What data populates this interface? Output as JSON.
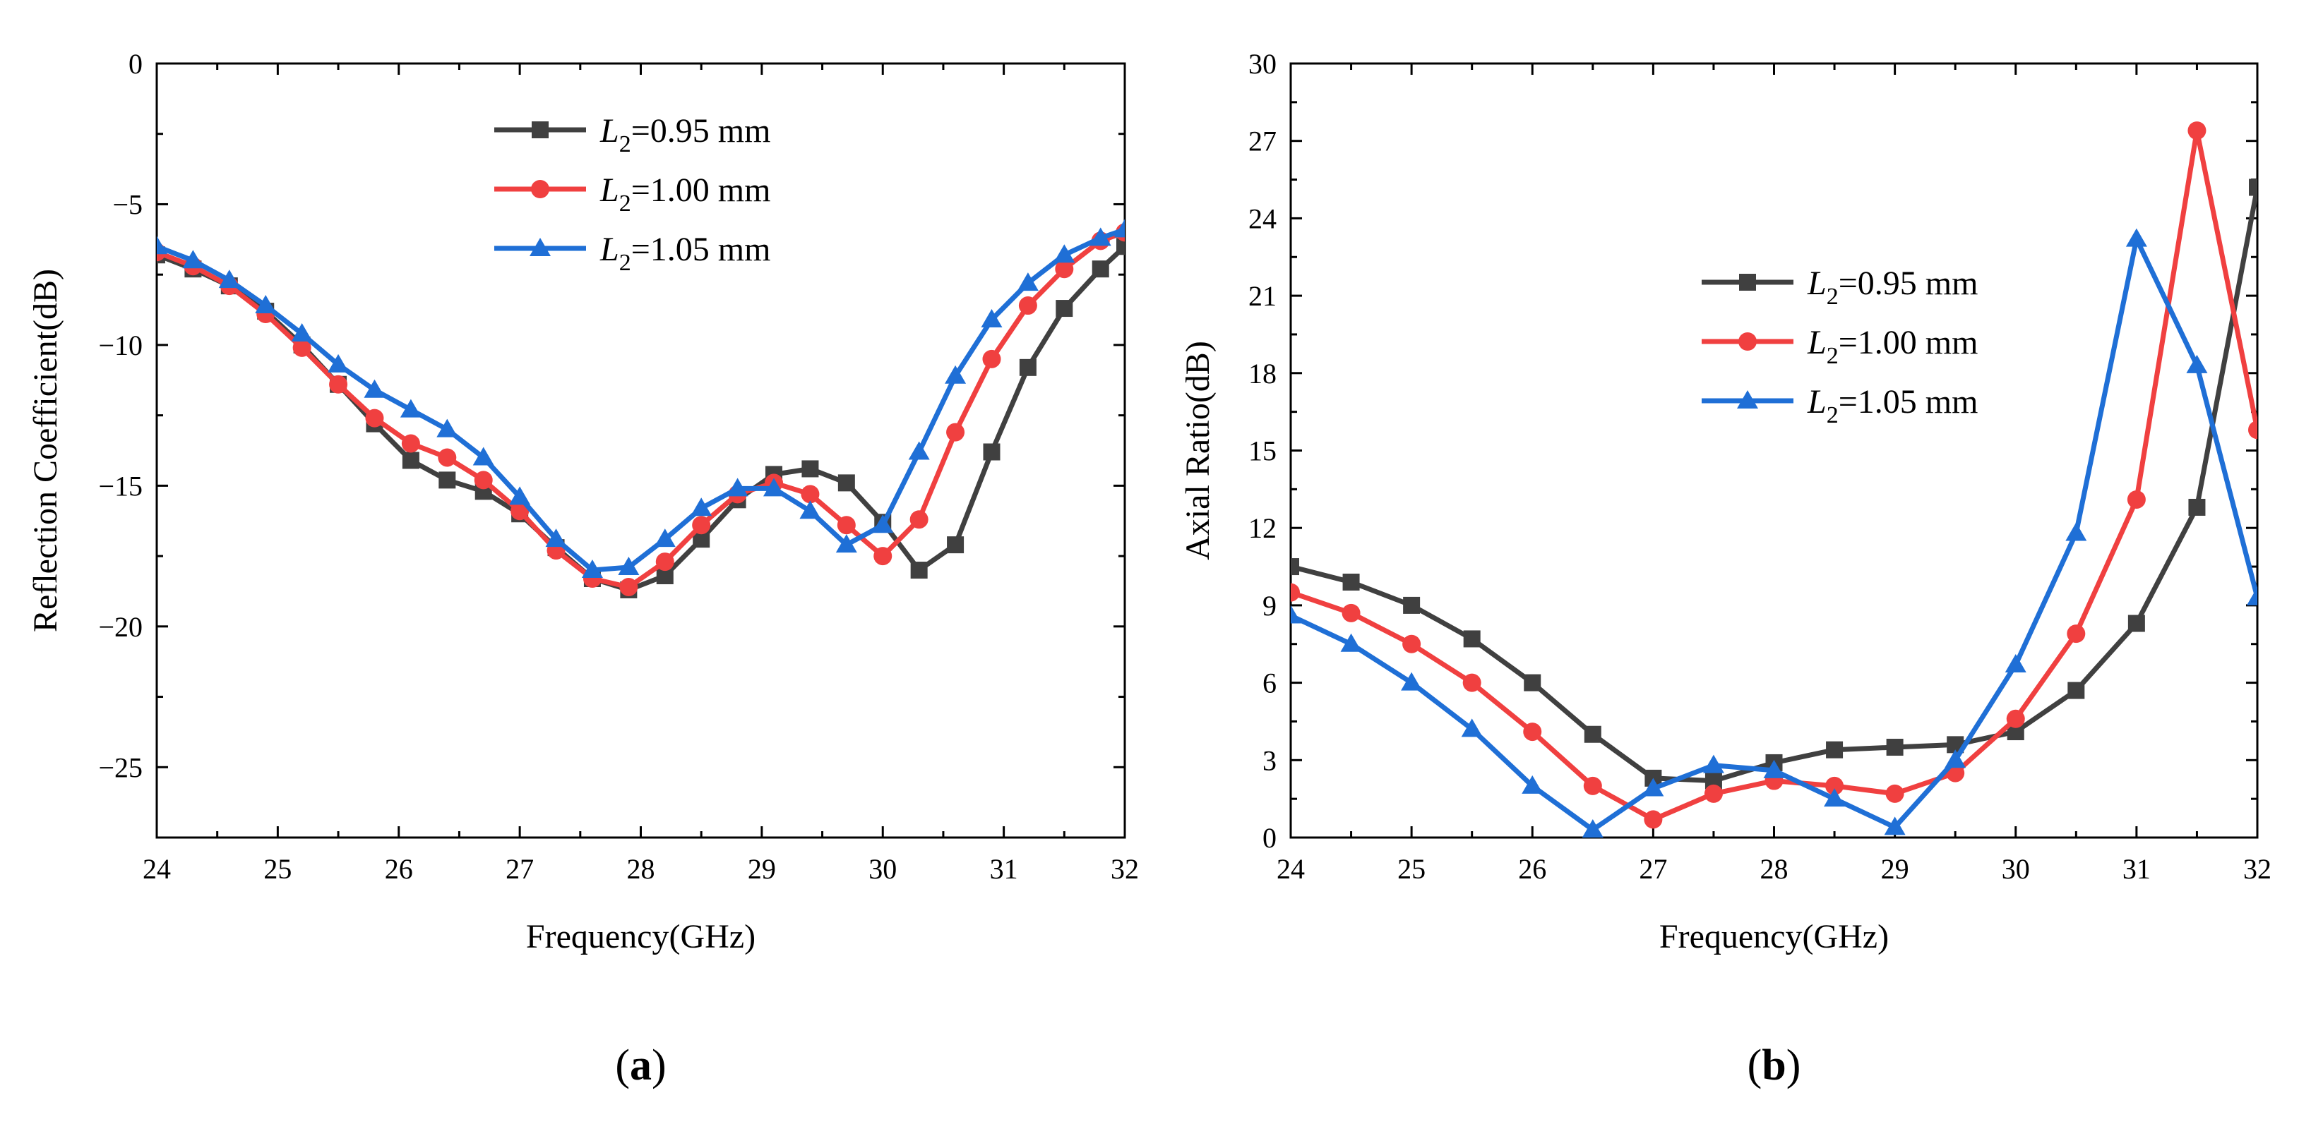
{
  "chart_data": [
    {
      "panel_label": "a",
      "type": "line",
      "xlabel": "Frequency(GHz)",
      "ylabel": "Reflection Coefficient(dB)",
      "xlim": [
        24,
        32
      ],
      "ylim": [
        -27.5,
        0
      ],
      "xticks": [
        24,
        25,
        26,
        27,
        28,
        29,
        30,
        31,
        32
      ],
      "yticks": [
        0,
        -5,
        -10,
        -15,
        -20,
        -25
      ],
      "ytick_labels": [
        "0",
        "−5",
        "−10",
        "−15",
        "−20",
        "−25"
      ],
      "grid": false,
      "legend_position": "top-center",
      "series": [
        {
          "name": "L2=0.95 mm",
          "name_base": "L",
          "name_sub": "2",
          "name_rest": "=0.95 mm",
          "color": "#404040",
          "marker": "square",
          "x": [
            24.0,
            24.3,
            24.6,
            24.9,
            25.2,
            25.5,
            25.8,
            26.1,
            26.4,
            26.7,
            27.0,
            27.3,
            27.6,
            27.9,
            28.2,
            28.5,
            28.8,
            29.1,
            29.4,
            29.7,
            30.0,
            30.3,
            30.6,
            30.9,
            31.2,
            31.5,
            31.8,
            32.0
          ],
          "y": [
            -6.8,
            -7.3,
            -7.9,
            -8.8,
            -10.0,
            -11.4,
            -12.8,
            -14.1,
            -14.8,
            -15.2,
            -16.0,
            -17.2,
            -18.3,
            -18.7,
            -18.2,
            -16.9,
            -15.5,
            -14.6,
            -14.4,
            -14.9,
            -16.3,
            -18.0,
            -17.1,
            -13.8,
            -10.8,
            -8.7,
            -7.3,
            -6.5
          ]
        },
        {
          "name": "L2=1.00 mm",
          "name_base": "L",
          "name_sub": "2",
          "name_rest": "=1.00 mm",
          "color": "#f04040",
          "marker": "circle",
          "x": [
            24.0,
            24.3,
            24.6,
            24.9,
            25.2,
            25.5,
            25.8,
            26.1,
            26.4,
            26.7,
            27.0,
            27.3,
            27.6,
            27.9,
            28.2,
            28.5,
            28.8,
            29.1,
            29.4,
            29.7,
            30.0,
            30.3,
            30.6,
            30.9,
            31.2,
            31.5,
            31.8,
            32.0
          ],
          "y": [
            -6.7,
            -7.2,
            -7.9,
            -8.9,
            -10.1,
            -11.4,
            -12.6,
            -13.5,
            -14.0,
            -14.8,
            -15.9,
            -17.3,
            -18.3,
            -18.6,
            -17.7,
            -16.4,
            -15.3,
            -14.9,
            -15.3,
            -16.4,
            -17.5,
            -16.2,
            -13.1,
            -10.5,
            -8.6,
            -7.3,
            -6.3,
            -6.0
          ]
        },
        {
          "name": "L2=1.05 mm",
          "name_base": "L",
          "name_sub": "2",
          "name_rest": "=1.05 mm",
          "color": "#1f6fd6",
          "marker": "triangle",
          "x": [
            24.0,
            24.3,
            24.6,
            24.9,
            25.2,
            25.5,
            25.8,
            26.1,
            26.4,
            26.7,
            27.0,
            27.3,
            27.6,
            27.9,
            28.2,
            28.5,
            28.8,
            29.1,
            29.4,
            29.7,
            30.0,
            30.3,
            30.6,
            30.9,
            31.2,
            31.5,
            31.8,
            32.0
          ],
          "y": [
            -6.5,
            -7.0,
            -7.7,
            -8.6,
            -9.6,
            -10.7,
            -11.6,
            -12.3,
            -13.0,
            -14.0,
            -15.4,
            -16.9,
            -18.0,
            -17.9,
            -16.9,
            -15.8,
            -15.1,
            -15.1,
            -15.9,
            -17.1,
            -16.4,
            -13.8,
            -11.1,
            -9.1,
            -7.8,
            -6.8,
            -6.2,
            -5.9
          ]
        }
      ]
    },
    {
      "panel_label": "b",
      "type": "line",
      "xlabel": "Frequency(GHz)",
      "ylabel": "Axial Ratio(dB)",
      "xlim": [
        24,
        32
      ],
      "ylim": [
        0,
        30
      ],
      "xticks": [
        24,
        25,
        26,
        27,
        28,
        29,
        30,
        31,
        32
      ],
      "yticks": [
        0,
        3,
        6,
        9,
        12,
        15,
        18,
        21,
        24,
        27,
        30
      ],
      "ytick_labels": [
        "0",
        "3",
        "6",
        "9",
        "12",
        "15",
        "18",
        "21",
        "24",
        "27",
        "30"
      ],
      "grid": false,
      "legend_position": "center-right",
      "series": [
        {
          "name": "L2=0.95 mm",
          "name_base": "L",
          "name_sub": "2",
          "name_rest": "=0.95 mm",
          "color": "#404040",
          "marker": "square",
          "x": [
            24.0,
            24.5,
            25.0,
            25.5,
            26.0,
            26.5,
            27.0,
            27.5,
            28.0,
            28.5,
            29.0,
            29.5,
            30.0,
            30.5,
            31.0,
            31.5,
            32.0
          ],
          "y": [
            10.5,
            9.9,
            9.0,
            7.7,
            6.0,
            4.0,
            2.3,
            2.2,
            2.9,
            3.4,
            3.5,
            3.6,
            4.1,
            5.7,
            8.3,
            12.8,
            25.2
          ]
        },
        {
          "name": "L2=1.00 mm",
          "name_base": "L",
          "name_sub": "2",
          "name_rest": "=1.00 mm",
          "color": "#f04040",
          "marker": "circle",
          "x": [
            24.0,
            24.5,
            25.0,
            25.5,
            26.0,
            26.5,
            27.0,
            27.5,
            28.0,
            28.5,
            29.0,
            29.5,
            30.0,
            30.5,
            31.0,
            31.5,
            32.0
          ],
          "y": [
            9.5,
            8.7,
            7.5,
            6.0,
            4.1,
            2.0,
            0.7,
            1.7,
            2.2,
            2.0,
            1.7,
            2.5,
            4.6,
            7.9,
            13.1,
            27.4,
            15.8
          ]
        },
        {
          "name": "L2=1.05 mm",
          "name_base": "L",
          "name_sub": "2",
          "name_rest": "=1.05 mm",
          "color": "#1f6fd6",
          "marker": "triangle",
          "x": [
            24.0,
            24.5,
            25.0,
            25.5,
            26.0,
            26.5,
            27.0,
            27.5,
            28.0,
            28.5,
            29.0,
            29.5,
            30.0,
            30.5,
            31.0,
            31.5,
            32.0
          ],
          "y": [
            8.6,
            7.5,
            6.0,
            4.2,
            2.0,
            0.3,
            1.9,
            2.8,
            2.6,
            1.5,
            0.4,
            3.0,
            6.7,
            11.8,
            23.2,
            18.3,
            9.3
          ]
        }
      ]
    }
  ]
}
